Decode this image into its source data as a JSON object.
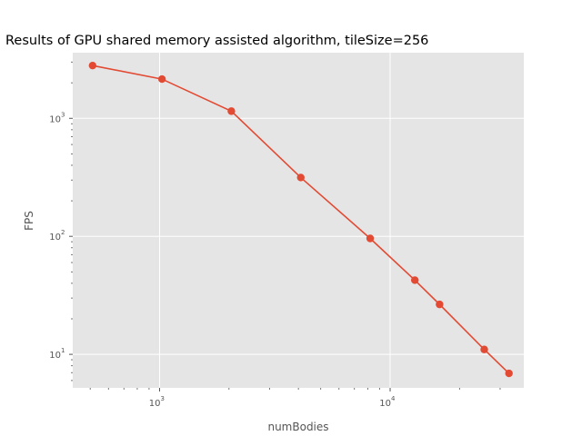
{
  "chart_data": {
    "type": "line",
    "title": "Results of GPU shared memory assisted algorithm, tileSize=256",
    "xlabel": "numBodies",
    "ylabel": "FPS",
    "xscale": "log",
    "yscale": "log",
    "xlim": [
      420,
      38000
    ],
    "ylim": [
      5.2,
      3600
    ],
    "x_major_ticks": [
      {
        "value": 1000,
        "base": "10",
        "exp": "3"
      },
      {
        "value": 10000,
        "base": "10",
        "exp": "4"
      }
    ],
    "y_major_ticks": [
      {
        "value": 10,
        "base": "10",
        "exp": "1"
      },
      {
        "value": 100,
        "base": "10",
        "exp": "2"
      },
      {
        "value": 1000,
        "base": "10",
        "exp": "3"
      }
    ],
    "grid": true,
    "series": [
      {
        "color": "#E24A33",
        "x": [
          512,
          1024,
          2048,
          4096,
          8192,
          12800,
          16384,
          25600,
          32768
        ],
        "y": [
          2800,
          2150,
          1150,
          315,
          96,
          42.5,
          26.5,
          11,
          6.9
        ]
      }
    ]
  }
}
